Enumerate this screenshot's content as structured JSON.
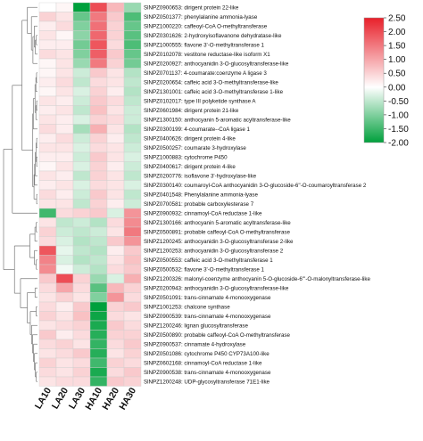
{
  "chart_data": {
    "type": "heatmap",
    "title": "",
    "columns": [
      "LA10",
      "LA20",
      "LA30",
      "HA10",
      "HA20",
      "HA30"
    ],
    "rows": [
      {
        "id": "SlNPZ0900653:",
        "name": "dirigent protein 22-like",
        "values": [
          0.0,
          0.1,
          -2.0,
          2.0,
          0.8,
          -0.8
        ]
      },
      {
        "id": "SlNPZ0501377:",
        "name": "phenylalanine ammonia-lyase",
        "values": [
          0.5,
          0.3,
          -1.2,
          1.5,
          0.6,
          -1.4
        ]
      },
      {
        "id": "SlNPZ1000220:",
        "name": "caffeoyl-CoA O-methyltransferase",
        "values": [
          0.2,
          0.4,
          -1.0,
          1.6,
          0.5,
          -1.2
        ]
      },
      {
        "id": "SlNPZ0301626:",
        "name": "2-hydroxyisoflavanone dehydratase-like",
        "values": [
          0.3,
          0.1,
          -0.9,
          1.7,
          0.5,
          -1.3
        ]
      },
      {
        "id": "SlNPZ1000555:",
        "name": "flavone 3'-O-methyltransferase 1",
        "values": [
          0.2,
          0.2,
          -1.1,
          1.9,
          0.4,
          -1.4
        ]
      },
      {
        "id": "SlNPZ0102078:",
        "name": "vestitone reductase-like isoform X1",
        "values": [
          0.4,
          0.3,
          -1.0,
          1.8,
          0.6,
          -1.2
        ]
      },
      {
        "id": "SlNPZ0200927:",
        "name": "anthocyanidin 3-O-glucosyltransferase-like",
        "values": [
          0.1,
          0.3,
          -0.8,
          1.5,
          0.5,
          -1.1
        ]
      },
      {
        "id": "SlNPZ0701137:",
        "name": "4-coumarate:coenzyme A ligase 3",
        "values": [
          0.1,
          0.3,
          -0.4,
          0.6,
          0.3,
          -0.6
        ]
      },
      {
        "id": "SlNPZ0200654:",
        "name": "caffeic acid 3-O-methyltransferase-like",
        "values": [
          0.2,
          0.4,
          -0.5,
          0.4,
          0.3,
          -0.5
        ]
      },
      {
        "id": "SlNPZ1301001:",
        "name": "caffeic acid 3-O-methyltransferase 1-like",
        "values": [
          0.1,
          0.3,
          -0.3,
          0.5,
          0.2,
          -0.6
        ]
      },
      {
        "id": "SlNPZ0102017:",
        "name": "type III polyketide synthase A",
        "values": [
          0.3,
          0.2,
          -0.4,
          0.6,
          0.4,
          -0.5
        ]
      },
      {
        "id": "SlNPZ0601984:",
        "name": "dirigent protein 21-like",
        "values": [
          0.2,
          0.3,
          -0.5,
          0.7,
          0.3,
          -0.4
        ]
      },
      {
        "id": "SlNPZ1300150:",
        "name": "anthocyanin 5-aromatic acyltransferase-like",
        "values": [
          0.3,
          0.2,
          -0.3,
          0.5,
          0.4,
          -0.4
        ]
      },
      {
        "id": "SlNPZ0300199:",
        "name": "4-coumarate--CoA ligase 1",
        "values": [
          0.4,
          0.2,
          -0.7,
          0.9,
          0.3,
          -0.6
        ]
      },
      {
        "id": "SlNPZ0400626:",
        "name": "dirigent protein 4-like",
        "values": [
          0.2,
          0.4,
          -0.4,
          0.5,
          0.2,
          -0.5
        ]
      },
      {
        "id": "SlNPZ0500257:",
        "name": "coumarate 3-hydroxylase",
        "values": [
          0.3,
          0.3,
          -0.3,
          0.4,
          0.3,
          -0.4
        ]
      },
      {
        "id": "SlNPZ1000883:",
        "name": "cytochrome P450",
        "values": [
          0.2,
          0.2,
          -0.4,
          0.6,
          0.3,
          -0.3
        ]
      },
      {
        "id": "SlNPZ0400617:",
        "name": "dirigent protein 4-like",
        "values": [
          0.1,
          0.3,
          -0.3,
          0.5,
          0.2,
          -0.4
        ]
      },
      {
        "id": "SlNPZ0200776:",
        "name": "isoflavone 3'-hydroxylase-like",
        "values": [
          0.3,
          0.2,
          -0.5,
          0.5,
          0.3,
          -0.5
        ]
      },
      {
        "id": "SlNPZ0300140:",
        "name": "coumaroyl-CoA anthocyanidin 3-O-glucoside-6''-O-coumaroyltransferase 2",
        "values": [
          0.2,
          0.3,
          -0.3,
          0.4,
          0.3,
          -0.3
        ]
      },
      {
        "id": "SlNPZ0401548:",
        "name": "Phenylalanine ammonia-lyase",
        "values": [
          0.4,
          0.2,
          -0.4,
          0.6,
          0.3,
          -0.5
        ]
      },
      {
        "id": "SlNPZ0700581:",
        "name": "probable carboxylesterase 7",
        "values": [
          0.3,
          0.3,
          -0.5,
          0.5,
          0.2,
          -0.4
        ]
      },
      {
        "id": "SlNPZ0900932:",
        "name": "cinnamoyl-CoA reductase 1-like",
        "values": [
          -1.5,
          0.4,
          0.5,
          0.6,
          -0.3,
          1.2
        ]
      },
      {
        "id": "SlNPZ1300166:",
        "name": "anthocyanin 5-aromatic acyltransferase-like",
        "values": [
          0.3,
          -0.5,
          -0.4,
          -0.6,
          0.4,
          1.3
        ]
      },
      {
        "id": "SlNPZ0500891:",
        "name": "probable caffeoyl-CoA O-methyltransferase",
        "values": [
          0.5,
          -0.4,
          -0.5,
          -0.4,
          0.3,
          1.5
        ]
      },
      {
        "id": "SlNPZ1200245:",
        "name": "anthocyanidin 3-O-glucosyltransferase 2-like",
        "values": [
          0.4,
          -0.3,
          -0.6,
          -0.5,
          0.6,
          1.2
        ]
      },
      {
        "id": "SlNPZ1200253:",
        "name": "anthocyanidin 3-O-glucosyltransferase 2",
        "values": [
          1.9,
          -0.2,
          -0.5,
          -0.6,
          0.2,
          0.6
        ]
      },
      {
        "id": "SlNPZ0500553:",
        "name": "caffeic acid 3-O-methyltransferase 1",
        "values": [
          1.4,
          -0.3,
          -0.6,
          -0.5,
          0.3,
          0.7
        ]
      },
      {
        "id": "SlNPZ0500532:",
        "name": "flavone 3'-O-methyltransferase 1",
        "values": [
          1.3,
          -0.1,
          -0.4,
          -0.6,
          0.4,
          0.6
        ]
      },
      {
        "id": "SlNPZ1200326:",
        "name": "malonyl-coenzyme anthocyanin 5-O-glucoside-6'''-O-malonyltransferase-like",
        "values": [
          0.6,
          2.0,
          0.5,
          -0.8,
          -0.3,
          0.9
        ]
      },
      {
        "id": "SlNPZ0200943:",
        "name": "anthocyanidin 3-O-glucosyltransferase-like",
        "values": [
          0.4,
          1.0,
          0.4,
          -1.3,
          0.8,
          0.5
        ]
      },
      {
        "id": "SlNPZ0501091:",
        "name": "trans-cinnamate 4-monooxygenase",
        "values": [
          0.3,
          0.5,
          0.3,
          -1.0,
          1.2,
          0.4
        ]
      },
      {
        "id": "SlNPZ1001253:",
        "name": "chalcone synthase",
        "values": [
          0.4,
          0.2,
          0.6,
          -2.0,
          0.5,
          0.6
        ]
      },
      {
        "id": "SlNPZ0900539:",
        "name": "trans-cinnamate 4-monooxygenase",
        "values": [
          0.5,
          0.3,
          0.7,
          -1.9,
          0.4,
          0.3
        ]
      },
      {
        "id": "SlNPZ1200246:",
        "name": "lignan glucosyltransferase",
        "values": [
          0.3,
          0.4,
          0.5,
          -1.8,
          0.6,
          0.4
        ]
      },
      {
        "id": "SlNPZ0500890:",
        "name": "probable caffeoyl-CoA O-methyltransferase",
        "values": [
          0.6,
          0.2,
          0.4,
          -1.7,
          0.5,
          0.5
        ]
      },
      {
        "id": "SlNPZ0900537:",
        "name": "cinnamate 4-hydroxylase",
        "values": [
          0.4,
          0.5,
          0.3,
          -1.6,
          0.4,
          0.6
        ]
      },
      {
        "id": "SlNPZ0501086:",
        "name": "cytochrome P450 CYP73A100-like",
        "values": [
          0.3,
          0.4,
          0.6,
          -1.7,
          0.3,
          0.5
        ]
      },
      {
        "id": "SlNPZ0602168:",
        "name": "cinnamoyl-CoA reductase 1-like",
        "values": [
          0.5,
          0.3,
          0.4,
          -1.5,
          0.5,
          0.4
        ]
      },
      {
        "id": "SlNPZ0900538:",
        "name": "trans-cinnamate 4-monooxygenase",
        "values": [
          0.4,
          0.3,
          0.5,
          -1.8,
          0.4,
          0.6
        ]
      },
      {
        "id": "SlNPZ1200248:",
        "name": "UDP-glycosyltransferase 71E1-like",
        "values": [
          0.3,
          0.4,
          0.4,
          -1.6,
          0.6,
          0.5
        ]
      }
    ],
    "colorscale": {
      "min": -2.0,
      "max": 2.5,
      "ticks": [
        "2.50",
        "2.00",
        "1.50",
        "1.00",
        "0.50",
        "0.00",
        "-0.50",
        "-1.00",
        "-1.50",
        "-2.00"
      ],
      "low_color": "#00a03c",
      "mid_color": "#ffffff",
      "high_color": "#e8202a"
    },
    "grid": true,
    "legend": "top-right",
    "dendrogram": "left"
  }
}
